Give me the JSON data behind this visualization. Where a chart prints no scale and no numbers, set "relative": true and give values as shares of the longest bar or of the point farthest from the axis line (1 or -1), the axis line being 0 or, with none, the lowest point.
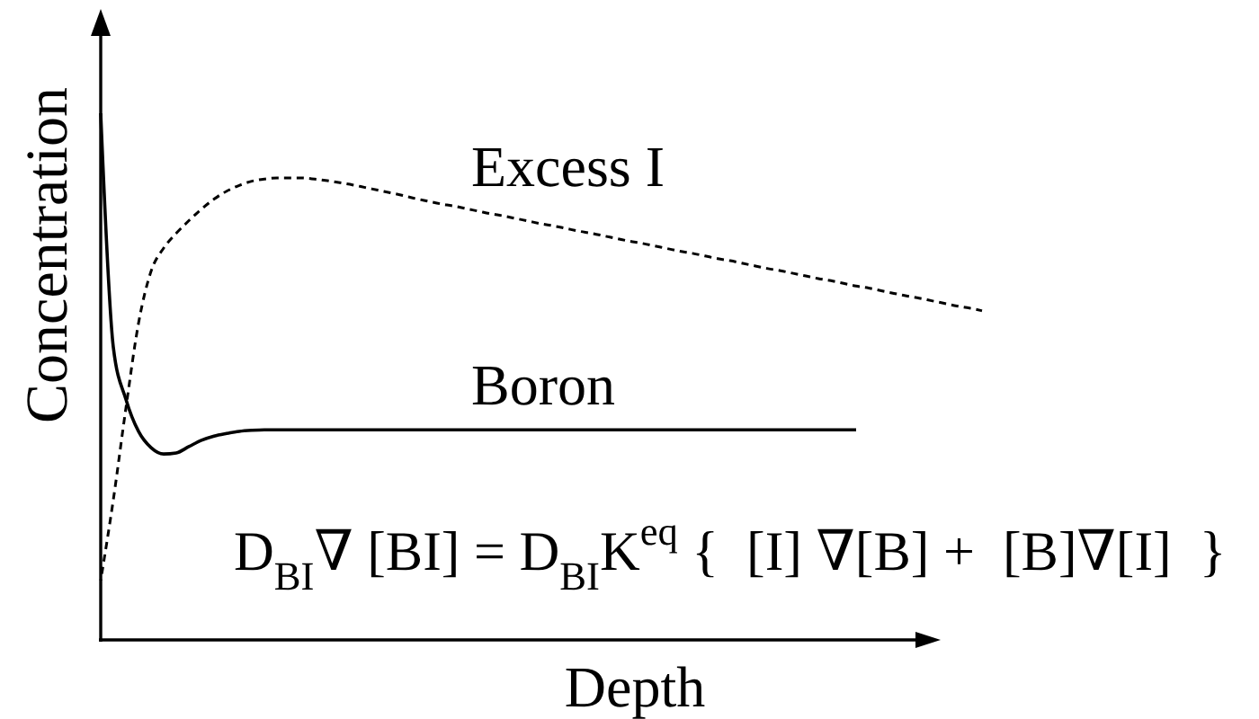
{
  "chart_data": {
    "type": "line",
    "xlabel": "Depth",
    "ylabel": "Concentration",
    "relative": true,
    "categories": [
      null,
      null,
      null,
      null,
      null,
      null,
      null,
      null,
      null,
      null,
      null,
      null,
      null,
      null,
      null,
      null,
      null,
      null,
      null,
      null,
      null,
      null,
      null,
      null,
      null,
      null,
      null,
      null,
      null,
      null,
      null,
      null,
      null,
      null,
      null,
      null,
      null,
      null,
      null,
      null,
      null,
      null,
      null,
      null,
      null,
      null,
      null,
      null,
      null,
      null,
      null,
      null,
      null,
      null,
      null,
      null,
      null,
      null,
      null,
      null,
      null,
      null,
      null,
      null,
      null,
      null,
      null,
      null,
      null,
      null,
      null
    ],
    "series": [
      {
        "name": "Excess I",
        "color": "#000000",
        "line_style": "dashed",
        "values": [
          0.113,
          0.266,
          0.44,
          0.601,
          0.7,
          0.744,
          0.772,
          0.796,
          0.818,
          0.837,
          0.852,
          0.863,
          0.871,
          0.875,
          0.877,
          0.877,
          0.877,
          0.875,
          0.872,
          0.868,
          0.864,
          0.859,
          0.854,
          0.849,
          0.844,
          0.838,
          0.833,
          0.828,
          0.824,
          0.819,
          0.814,
          0.809,
          0.805,
          0.8,
          0.795,
          0.79,
          0.786,
          0.781,
          0.776,
          0.772,
          0.767,
          0.762,
          0.757,
          0.753,
          0.748,
          0.743,
          0.738,
          0.734,
          0.729,
          0.724,
          0.72,
          0.715,
          0.71,
          0.705,
          0.701,
          0.696,
          0.691,
          0.686,
          0.682,
          0.677,
          0.672,
          0.668,
          0.663,
          0.658,
          0.653,
          0.649,
          0.644,
          0.639,
          0.634,
          0.63,
          0.625
        ]
      },
      {
        "name": "Boron",
        "color": "#000000",
        "line_style": "solid",
        "values": [
          1,
          0.556,
          0.457,
          0.396,
          0.365,
          0.353,
          0.355,
          0.367,
          0.379,
          0.387,
          0.392,
          0.396,
          0.398,
          0.399,
          0.399,
          0.399,
          0.399,
          0.399,
          0.399,
          0.399,
          0.399,
          0.399,
          0.399,
          0.399,
          0.399,
          0.399,
          0.399,
          0.399,
          0.399,
          0.399,
          0.399,
          0.399,
          0.399,
          0.399,
          0.399,
          0.399,
          0.399,
          0.399,
          0.399,
          0.399,
          0.399,
          0.399,
          0.399,
          0.399,
          0.399,
          0.399,
          0.399,
          0.399,
          0.399,
          0.399,
          0.399,
          0.399,
          0.399,
          0.399,
          0.399,
          0.399,
          0.399,
          0.399,
          0.399,
          0.399,
          0.399,
          null,
          null,
          null,
          null,
          null,
          null,
          null,
          null,
          null,
          null
        ]
      }
    ],
    "annotations": [
      "D$_{BI}$∇ [BI] = D$_{BI}$K$^{eq}$ {  [I] ∇[B] +  [B]∇[I]  }"
    ]
  }
}
